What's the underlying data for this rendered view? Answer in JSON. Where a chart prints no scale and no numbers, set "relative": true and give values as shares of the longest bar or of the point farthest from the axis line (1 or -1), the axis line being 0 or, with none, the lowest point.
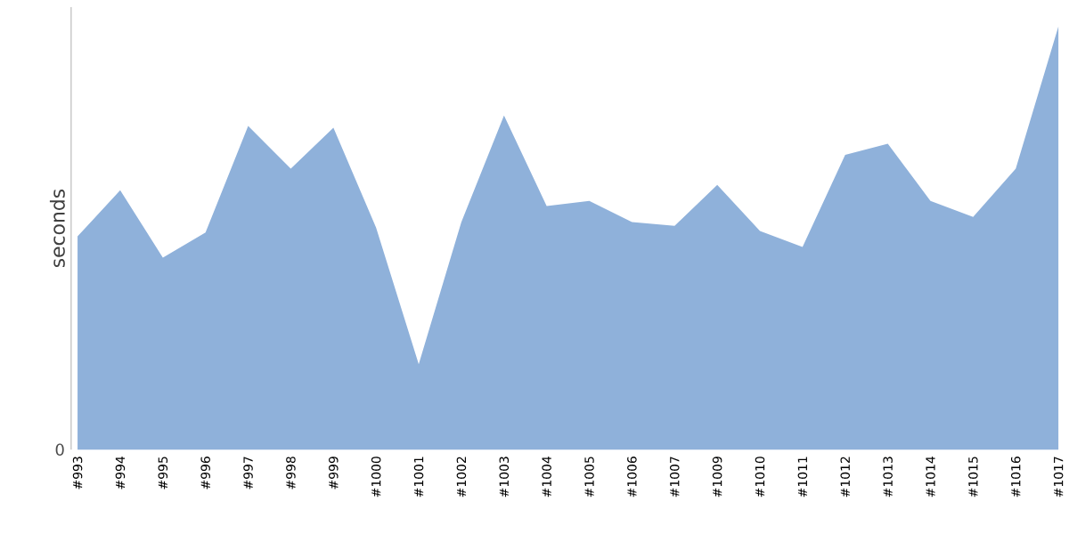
{
  "chart_data": {
    "type": "area",
    "ylabel": "seconds",
    "relative": true,
    "color": "#8fb1da",
    "categories": [
      "#993",
      "#994",
      "#995",
      "#996",
      "#997",
      "#998",
      "#999",
      "#1000",
      "#1001",
      "#1002",
      "#1003",
      "#1004",
      "#1005",
      "#1006",
      "#1007",
      "#1009",
      "#1010",
      "#1011",
      "#1012",
      "#1013",
      "#1014",
      "#1015",
      "#1016",
      "#1017"
    ],
    "values": [
      0.504,
      0.613,
      0.454,
      0.513,
      0.765,
      0.664,
      0.761,
      0.525,
      0.202,
      0.538,
      0.79,
      0.576,
      0.588,
      0.538,
      0.529,
      0.626,
      0.517,
      0.479,
      0.697,
      0.723,
      0.588,
      0.55,
      0.664,
      1.0
    ],
    "annotations": [
      "0"
    ]
  }
}
